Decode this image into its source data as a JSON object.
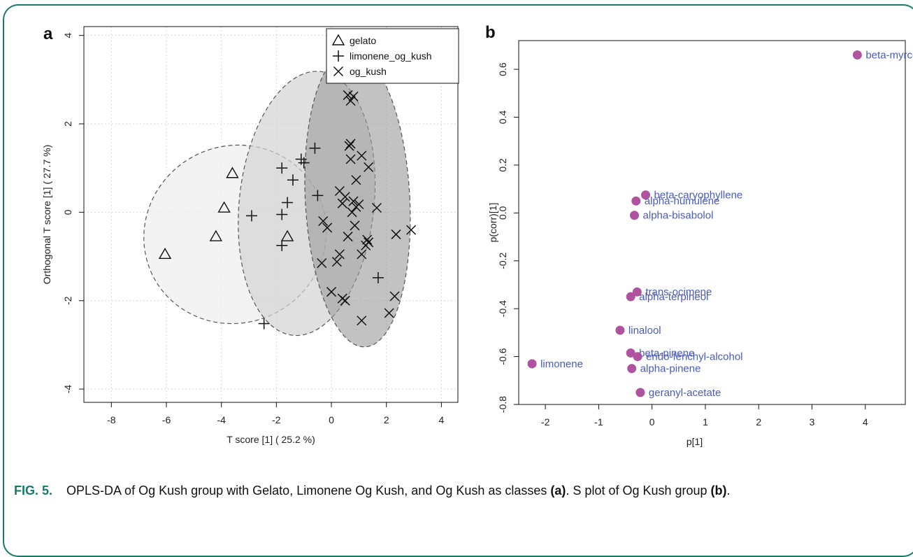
{
  "chart_data": [
    {
      "panel": "a",
      "type": "scatter",
      "xlabel": "T score [1] ( 25.2 %)",
      "ylabel": "Orthogonal T score [1] ( 27.7 %)",
      "xlim": [
        -9,
        4.6
      ],
      "ylim": [
        -4.3,
        4.2
      ],
      "xticks": [
        -8,
        -6,
        -4,
        -2,
        0,
        2,
        4
      ],
      "yticks": [
        -4,
        -2,
        0,
        2,
        4
      ],
      "xtick_labels": [
        "-8",
        "-6",
        "-4",
        "-2",
        "0",
        "2",
        "4"
      ],
      "ytick_labels": [
        "-4",
        "-2",
        "0",
        "2",
        "4"
      ],
      "grid": true,
      "legend_placement": "top-right",
      "series": [
        {
          "name": "gelato",
          "marker": "triangle",
          "points": [
            [
              -6.05,
              -0.95
            ],
            [
              -4.2,
              -0.55
            ],
            [
              -3.6,
              0.88
            ],
            [
              -3.9,
              0.1
            ],
            [
              -1.6,
              -0.55
            ]
          ]
        },
        {
          "name": "limonene_og_kush",
          "marker": "plus",
          "points": [
            [
              -2.9,
              -0.08
            ],
            [
              -1.8,
              1.0
            ],
            [
              -1.8,
              -0.05
            ],
            [
              -1.8,
              -0.75
            ],
            [
              -1.6,
              0.22
            ],
            [
              -1.4,
              0.73
            ],
            [
              -1.1,
              1.2
            ],
            [
              -1.0,
              1.12
            ],
            [
              -0.6,
              1.45
            ],
            [
              -0.5,
              0.38
            ],
            [
              -2.45,
              -2.52
            ],
            [
              1.7,
              -1.48
            ]
          ]
        },
        {
          "name": "og_kush",
          "marker": "x",
          "points": [
            [
              0.6,
              2.65
            ],
            [
              0.8,
              2.62
            ],
            [
              0.7,
              2.52
            ],
            [
              0.65,
              1.5
            ],
            [
              0.7,
              1.55
            ],
            [
              1.1,
              1.28
            ],
            [
              0.7,
              1.2
            ],
            [
              1.35,
              1.02
            ],
            [
              0.3,
              0.48
            ],
            [
              0.9,
              0.73
            ],
            [
              0.5,
              0.35
            ],
            [
              0.4,
              0.2
            ],
            [
              0.8,
              0.25
            ],
            [
              0.9,
              0.12
            ],
            [
              0.75,
              0.0
            ],
            [
              1.0,
              0.18
            ],
            [
              1.65,
              0.1
            ],
            [
              -0.3,
              -0.2
            ],
            [
              -0.15,
              -0.35
            ],
            [
              0.85,
              -0.3
            ],
            [
              0.6,
              -0.55
            ],
            [
              1.3,
              -0.62
            ],
            [
              1.35,
              -0.68
            ],
            [
              1.25,
              -0.75
            ],
            [
              1.1,
              -0.95
            ],
            [
              0.3,
              -0.95
            ],
            [
              -0.35,
              -1.15
            ],
            [
              0.2,
              -1.12
            ],
            [
              0.0,
              -1.8
            ],
            [
              0.4,
              -1.95
            ],
            [
              0.5,
              -2.0
            ],
            [
              1.1,
              -2.45
            ],
            [
              2.1,
              -2.28
            ],
            [
              2.3,
              -1.9
            ],
            [
              2.35,
              -0.5
            ],
            [
              2.9,
              -0.4
            ]
          ]
        }
      ],
      "ellipses": [
        {
          "group": "gelato",
          "center": [
            -3.5,
            -0.5
          ],
          "semi_axes": [
            3.35,
            2.0
          ],
          "rotation_deg": 28
        },
        {
          "group": "limonene_og_kush",
          "center": [
            -0.9,
            0.2
          ],
          "semi_axes": [
            2.45,
            3.0
          ],
          "rotation_deg": -6
        },
        {
          "group": "og_kush",
          "center": [
            0.95,
            0.3
          ],
          "semi_axes": [
            1.9,
            3.35
          ],
          "rotation_deg": 3
        }
      ]
    },
    {
      "panel": "b",
      "type": "scatter",
      "xlabel": "p[1]",
      "ylabel": "p(corr)[1]",
      "xlim": [
        -2.5,
        4.75
      ],
      "ylim": [
        -0.8,
        0.72
      ],
      "xticks": [
        -2,
        -1,
        0,
        1,
        2,
        3,
        4
      ],
      "yticks": [
        -0.8,
        -0.6,
        -0.4,
        -0.2,
        0.0,
        0.2,
        0.4,
        0.6
      ],
      "xtick_labels": [
        "-2",
        "-1",
        "0",
        "1",
        "2",
        "3",
        "4"
      ],
      "ytick_labels": [
        "-0.8",
        "-0.6",
        "-0.4",
        "-0.2",
        "0.0",
        "0.2",
        "0.4",
        "0.6"
      ],
      "grid": false,
      "points": [
        {
          "label": "beta-myrcene",
          "x": 3.85,
          "y": 0.66
        },
        {
          "label": "beta-caryophyllene",
          "x": -0.12,
          "y": 0.075
        },
        {
          "label": "alpha-humulene",
          "x": -0.3,
          "y": 0.05
        },
        {
          "label": "alpha-bisabolol",
          "x": -0.33,
          "y": -0.01
        },
        {
          "label": "trans-ocimene",
          "x": -0.28,
          "y": -0.33
        },
        {
          "label": "alpha-terpineol",
          "x": -0.4,
          "y": -0.35
        },
        {
          "label": "linalool",
          "x": -0.6,
          "y": -0.49
        },
        {
          "label": "beta-pinene",
          "x": -0.4,
          "y": -0.585
        },
        {
          "label": "endo-fenchyl-alcohol",
          "x": -0.27,
          "y": -0.6
        },
        {
          "label": "limonene",
          "x": -2.25,
          "y": -0.63
        },
        {
          "label": "alpha-pinene",
          "x": -0.38,
          "y": -0.65
        },
        {
          "label": "geranyl-acetate",
          "x": -0.22,
          "y": -0.75
        }
      ]
    }
  ],
  "panel_labels": {
    "a": "a",
    "b": "b"
  },
  "colors": {
    "frame": "#1a7a6a",
    "caption_lead": "#1a7a6a",
    "splot_point": "#b0539e",
    "splot_label": "#4b5bb8",
    "ellipse_gelato_fill": "#efefef",
    "ellipse_limonene_fill": "#d3d3d3",
    "ellipse_ogkush_fill": "#9a9a9a"
  },
  "caption": {
    "lead": "FIG. 5.",
    "text1": "OPLS-DA of Og Kush group with Gelato, Limonene Og Kush, and Og Kush as classes ",
    "ref1": "(a)",
    "text2": ". S plot of Og Kush group ",
    "ref2": "(b)",
    "text3": "."
  }
}
